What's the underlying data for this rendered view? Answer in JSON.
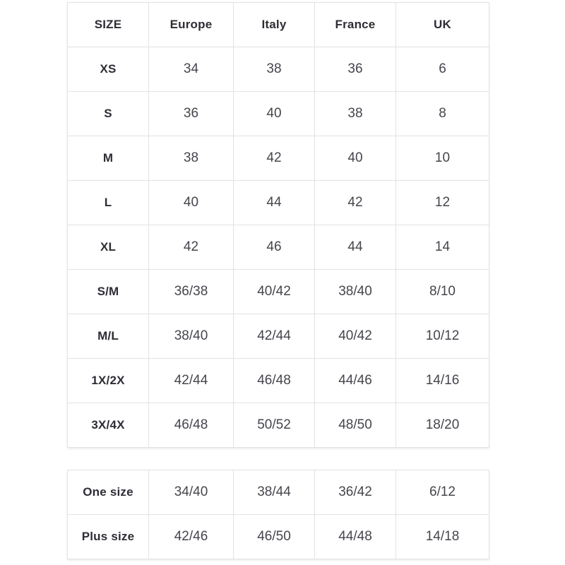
{
  "main_table": {
    "headers": [
      "SIZE",
      "Europe",
      "Italy",
      "France",
      "UK"
    ],
    "rows": [
      [
        "XS",
        "34",
        "38",
        "36",
        "6"
      ],
      [
        "S",
        "36",
        "40",
        "38",
        "8"
      ],
      [
        "M",
        "38",
        "42",
        "40",
        "10"
      ],
      [
        "L",
        "40",
        "44",
        "42",
        "12"
      ],
      [
        "XL",
        "42",
        "46",
        "44",
        "14"
      ],
      [
        "S/M",
        "36/38",
        "40/42",
        "38/40",
        "8/10"
      ],
      [
        "M/L",
        "38/40",
        "42/44",
        "40/42",
        "10/12"
      ],
      [
        "1X/2X",
        "42/44",
        "46/48",
        "44/46",
        "14/16"
      ],
      [
        "3X/4X",
        "46/48",
        "50/52",
        "48/50",
        "18/20"
      ]
    ]
  },
  "secondary_table": {
    "rows": [
      [
        "One size",
        "34/40",
        "38/44",
        "36/42",
        "6/12"
      ],
      [
        "Plus size",
        "42/46",
        "46/50",
        "44/48",
        "14/18"
      ]
    ]
  },
  "colors": {
    "background": "#ffffff",
    "border": "#e2e2e2",
    "header_text": "#2d2d35",
    "cell_text": "#45454d"
  }
}
